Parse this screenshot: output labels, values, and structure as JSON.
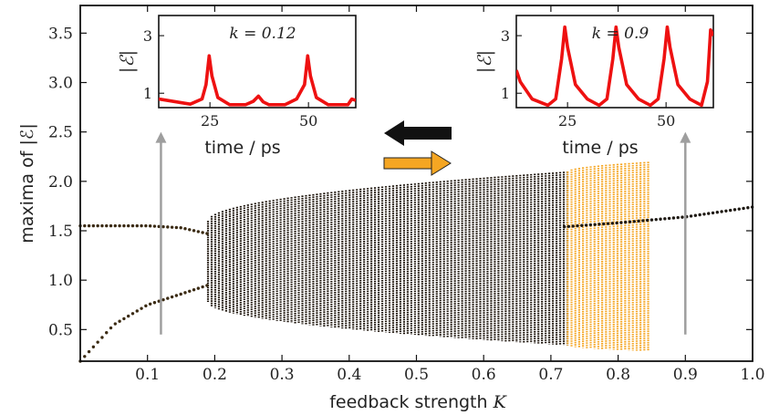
{
  "chart_data": {
    "type": "scatter",
    "title": "",
    "xlabel": "feedback strength",
    "xlabel_var": "K",
    "ylabel": "maxima of |ℰ|",
    "xlim": [
      0.0,
      1.0
    ],
    "ylim": [
      0.18,
      3.78
    ],
    "x_ticks": [
      "0.1",
      "0.2",
      "0.3",
      "0.4",
      "0.5",
      "0.6",
      "0.7",
      "0.8",
      "0.9",
      "1.0"
    ],
    "y_ticks": [
      "0.5",
      "1.0",
      "1.5",
      "2.0",
      "2.5",
      "3.0",
      "3.5"
    ],
    "grid": false,
    "colors": {
      "black": "#1a1108",
      "orange": "#f5a623",
      "arrow_gray": "#9e9e9e",
      "inset_line": "#ee1111"
    },
    "stable_branch_upper": {
      "x": [
        0.0,
        0.1,
        0.15,
        0.19
      ],
      "y": [
        1.55,
        1.55,
        1.53,
        1.47
      ]
    },
    "stable_branch_lower": {
      "x": [
        0.0,
        0.05,
        0.1,
        0.15,
        0.19
      ],
      "y": [
        0.18,
        0.55,
        0.75,
        0.86,
        0.95
      ]
    },
    "stable_branch_right": {
      "x": [
        0.72,
        0.8,
        0.9,
        1.0
      ],
      "y": [
        1.54,
        1.58,
        1.64,
        1.74
      ]
    },
    "black_band": {
      "x_start": 0.19,
      "x_end": 0.725,
      "top_start": 1.6,
      "top_end": 2.1,
      "bottom_start": 0.78,
      "bottom_end": 0.34
    },
    "orange_band": {
      "x_start": 0.725,
      "x_end": 0.85,
      "top_start": 2.1,
      "top_end": 2.2,
      "bottom_start": 0.34,
      "bottom_end": 0.28
    },
    "arrows": [
      {
        "direction": "up",
        "x": 0.12,
        "y_from": 0.45,
        "y_to": 2.5
      },
      {
        "direction": "up",
        "x": 0.9,
        "y_from": 0.45,
        "y_to": 2.5
      }
    ],
    "insets": [
      {
        "annotation": "k = 0.12",
        "xlabel": "time / ps",
        "ylabel": "|ℰ|",
        "x_ticks": [
          "25",
          "50"
        ],
        "y_ticks": [
          "1",
          "3"
        ],
        "xlim": [
          12,
          62
        ],
        "ylim": [
          0.5,
          3.7
        ],
        "x": [
          12,
          20,
          23,
          24,
          24.8,
          25.5,
          27,
          30,
          34,
          36,
          37.3,
          38.5,
          40,
          44,
          47,
          49,
          49.8,
          50.5,
          52,
          55,
          60,
          61,
          62
        ],
        "y": [
          0.8,
          0.62,
          0.8,
          1.3,
          2.3,
          1.6,
          0.85,
          0.6,
          0.6,
          0.72,
          0.9,
          0.7,
          0.6,
          0.6,
          0.8,
          1.3,
          2.3,
          1.6,
          0.85,
          0.6,
          0.6,
          0.8,
          0.75
        ]
      },
      {
        "annotation": "k = 0.9",
        "xlabel": "time / ps",
        "ylabel": "|ℰ|",
        "x_ticks": [
          "25",
          "50"
        ],
        "y_ticks": [
          "1",
          "3"
        ],
        "xlim": [
          12,
          62
        ],
        "ylim": [
          0.5,
          3.7
        ],
        "x": [
          12,
          13,
          16,
          20,
          22,
          23.5,
          24.3,
          25,
          27,
          30,
          33,
          35,
          36.5,
          37.3,
          38,
          40,
          43,
          46,
          48,
          49.5,
          50.3,
          51,
          53,
          56,
          59,
          60.5,
          61.3,
          62
        ],
        "y": [
          1.8,
          1.4,
          0.8,
          0.58,
          0.8,
          2.2,
          3.3,
          2.6,
          1.3,
          0.8,
          0.58,
          0.8,
          2.2,
          3.3,
          2.6,
          1.3,
          0.8,
          0.58,
          0.8,
          2.2,
          3.3,
          2.6,
          1.3,
          0.8,
          0.58,
          1.4,
          3.2,
          3.0
        ]
      }
    ]
  }
}
